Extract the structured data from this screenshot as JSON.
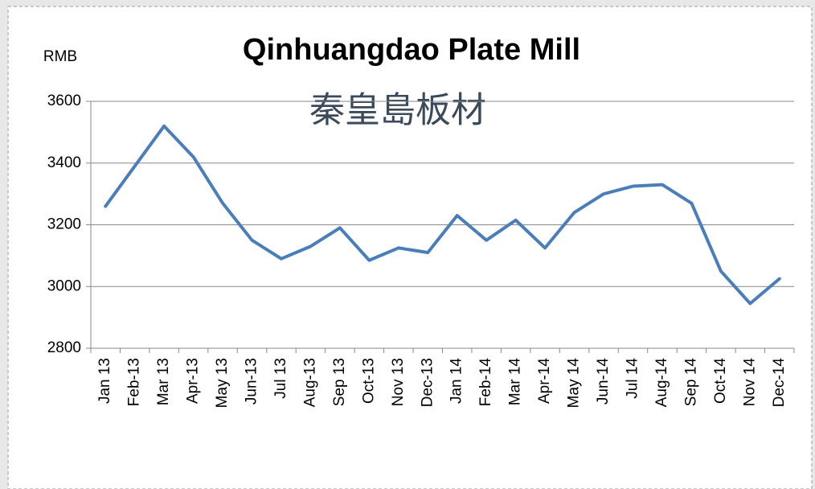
{
  "chart_data": {
    "type": "line",
    "title": "Qinhuangdao Plate Mill",
    "subtitle": "秦皇島板材",
    "y_label": "RMB",
    "categories": [
      "Jan 13",
      "Feb-13",
      "Mar 13",
      "Apr-13",
      "May 13",
      "Jun-13",
      "Jul 13",
      "Aug-13",
      "Sep 13",
      "Oct-13",
      "Nov 13",
      "Dec-13",
      "Jan 14",
      "Feb-14",
      "Mar 14",
      "Apr-14",
      "May 14",
      "Jun-14",
      "Jul 14",
      "Aug-14",
      "Sep 14",
      "Oct-14",
      "Nov 14",
      "Dec-14"
    ],
    "series": [
      {
        "name": "Qinhuangdao Plate Mill",
        "color": "#4a7ebb",
        "values": [
          3260,
          3390,
          3520,
          3420,
          3270,
          3150,
          3090,
          3130,
          3190,
          3085,
          3125,
          3110,
          3230,
          3150,
          3215,
          3125,
          3240,
          3300,
          3325,
          3330,
          3270,
          3050,
          2945,
          3025
        ]
      }
    ],
    "ylim": [
      2800,
      3600
    ],
    "yticks": [
      2800,
      3000,
      3200,
      3400,
      3600
    ],
    "grid": true
  }
}
